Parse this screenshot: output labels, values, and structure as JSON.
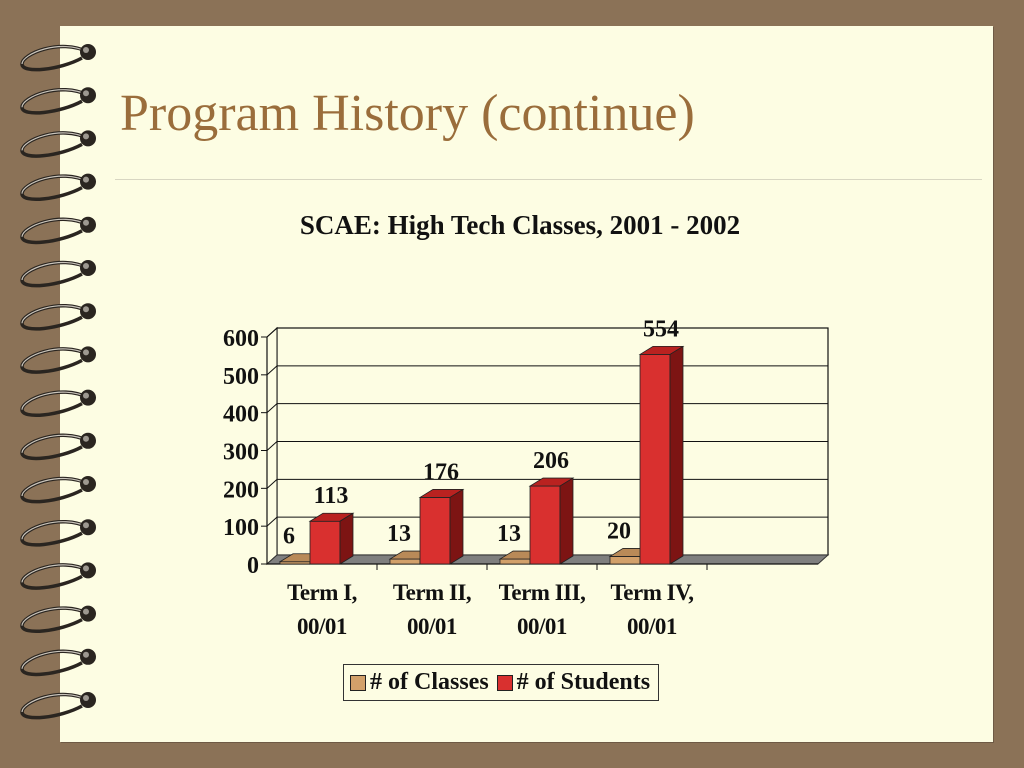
{
  "slide": {
    "title": "Program History (continue)"
  },
  "colors": {
    "background": "#8b7257",
    "page": "#fdfde3",
    "title": "#9a6d3b",
    "classes": "#d2a06a",
    "students": "#d9302f"
  },
  "chart_data": {
    "type": "bar",
    "title": "SCAE: High Tech Classes, 2001 - 2002",
    "categories": [
      [
        "Term I,",
        "00/01"
      ],
      [
        "Term II,",
        "00/01"
      ],
      [
        "Term III,",
        "00/01"
      ],
      [
        "Term IV,",
        "00/01"
      ]
    ],
    "series": [
      {
        "name": "# of Classes",
        "values": [
          6,
          13,
          13,
          20
        ]
      },
      {
        "name": "# of Students",
        "values": [
          113,
          176,
          206,
          554
        ]
      }
    ],
    "ylim": [
      0,
      600
    ],
    "yticks": [
      0,
      100,
      200,
      300,
      400,
      500,
      600
    ],
    "grid": true,
    "legend": "bottom",
    "style": "3d"
  }
}
